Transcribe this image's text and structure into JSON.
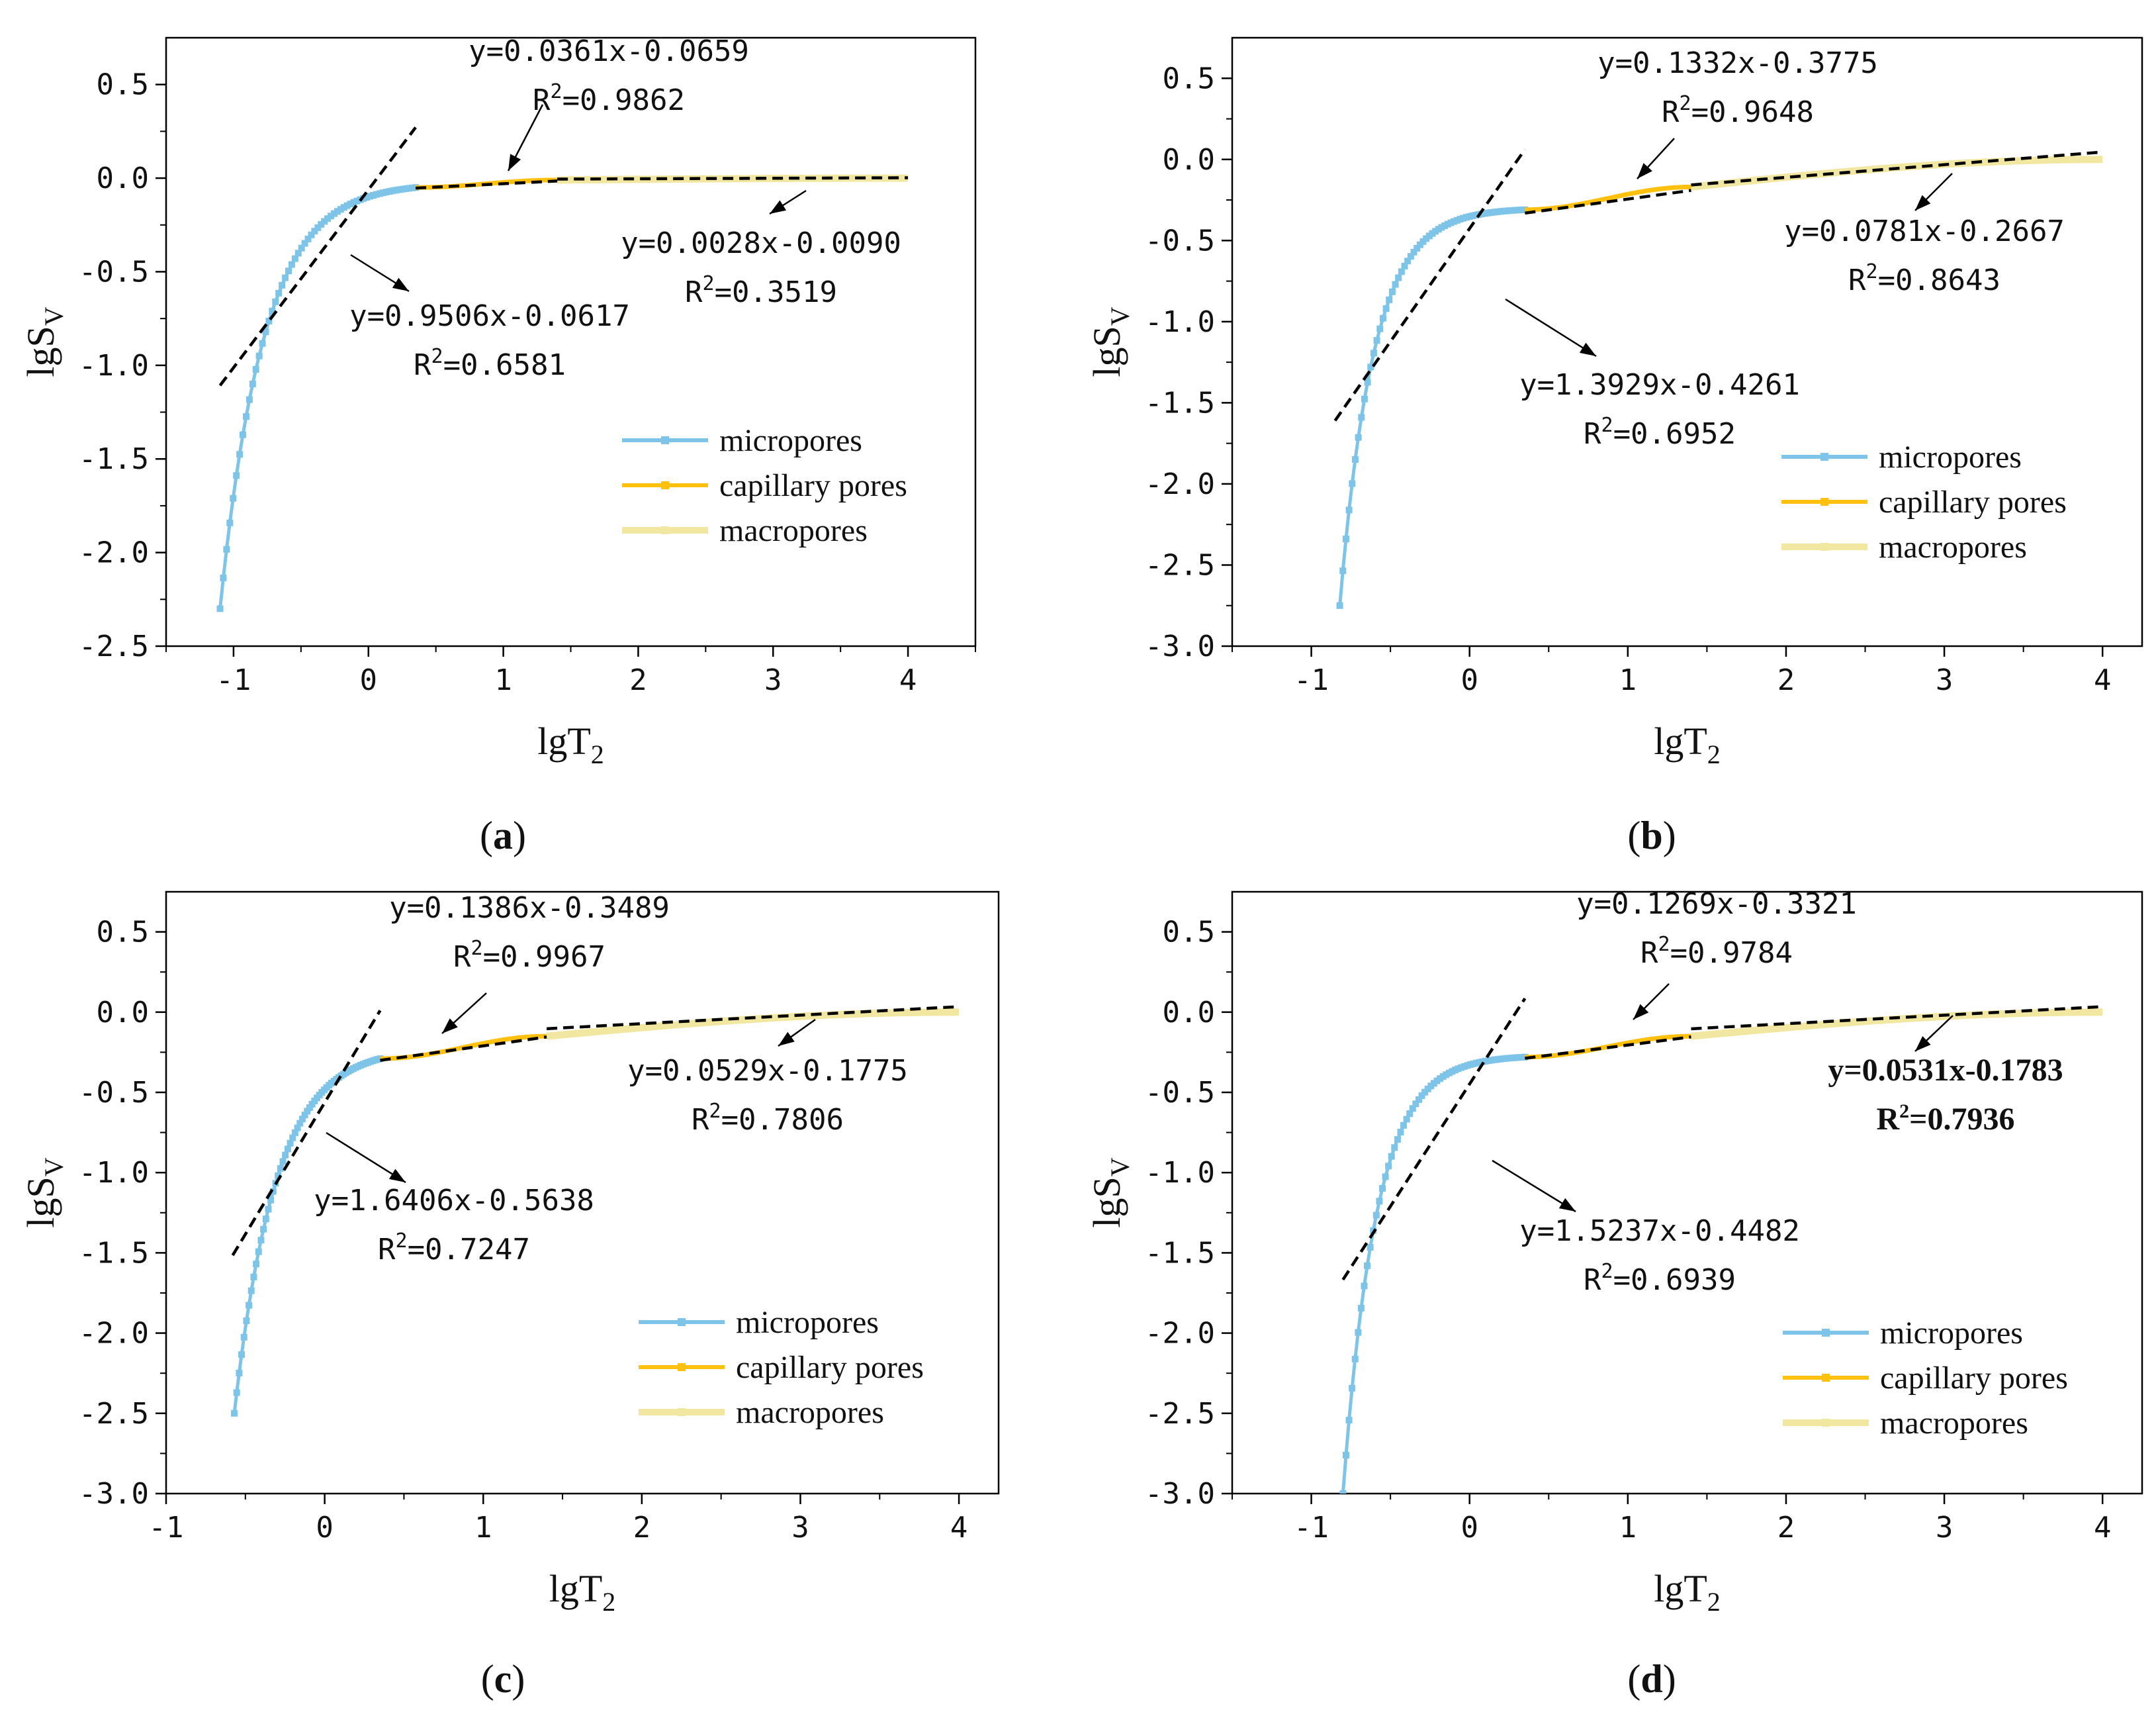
{
  "chart_data": [
    {
      "type": "line",
      "panel_label": "a",
      "xlabel": "lgT2",
      "ylabel": "lgSV",
      "xlim": [
        -1.5,
        4.5
      ],
      "ylim": [
        -2.5,
        0.75
      ],
      "xticks": [
        -1,
        0,
        1,
        2,
        3,
        4
      ],
      "yticks": [
        -2.5,
        -2.0,
        -1.5,
        -1.0,
        -0.5,
        0.0,
        0.5
      ],
      "ytick_labels": [
        "-2.5",
        "-2.0",
        "-1.5",
        "-1.0",
        "-0.5",
        "0.0",
        "0.5"
      ],
      "legend_position": "right",
      "series": [
        {
          "name": "micropores",
          "color": "#7ec4e8",
          "x_start": -1.1,
          "x_end": 0.35,
          "y_start": -2.3,
          "y_end": -0.05,
          "k": 4.5
        },
        {
          "name": "capillary pores",
          "color": "#ffc10e",
          "x_start": 0.35,
          "x_end": 1.4,
          "y_start": -0.05,
          "y_end": -0.01
        },
        {
          "name": "macropores",
          "color": "#f1e7a0",
          "x_start": 1.4,
          "x_end": 4.0,
          "y_start": -0.01,
          "y_end": 0.0
        }
      ],
      "fits": [
        {
          "slope": 0.9506,
          "intercept": -0.0617,
          "x_range": [
            -1.1,
            0.35
          ]
        },
        {
          "slope": 0.0361,
          "intercept": -0.0659,
          "x_range": [
            0.35,
            1.4
          ]
        },
        {
          "slope": 0.0028,
          "intercept": -0.009,
          "x_range": [
            1.4,
            4.0
          ]
        }
      ],
      "annotations": [
        {
          "eq": "y=0.0361x-0.0659",
          "r2": "0.9862"
        },
        {
          "eq": "y=0.0028x-0.0090",
          "r2": "0.3519"
        },
        {
          "eq": "y=0.9506x-0.0617",
          "r2": "0.6581"
        }
      ]
    },
    {
      "type": "line",
      "panel_label": "b",
      "xlabel": "lgT2",
      "ylabel": "lgSV",
      "xlim": [
        -1.5,
        4.25
      ],
      "ylim": [
        -3.0,
        0.75
      ],
      "xticks": [
        -1,
        0,
        1,
        2,
        3,
        4
      ],
      "yticks": [
        -3.0,
        -2.5,
        -2.0,
        -1.5,
        -1.0,
        -0.5,
        0.0,
        0.5
      ],
      "ytick_labels": [
        "-3.0",
        "-2.5",
        "-2.0",
        "-1.5",
        "-1.0",
        "-0.5",
        "0.0",
        "0.5"
      ],
      "legend_position": "bottom-right",
      "series": [
        {
          "name": "micropores",
          "color": "#7ec4e8",
          "x_start": -0.82,
          "x_end": 0.35,
          "y_start": -2.75,
          "y_end": -0.31,
          "k": 5.5
        },
        {
          "name": "capillary pores",
          "color": "#ffc10e",
          "x_start": 0.35,
          "x_end": 1.4,
          "y_start": -0.31,
          "y_end": -0.17
        },
        {
          "name": "macropores",
          "color": "#f1e7a0",
          "x_start": 1.4,
          "x_end": 4.0,
          "y_start": -0.17,
          "y_end": 0.0
        }
      ],
      "fits": [
        {
          "slope": 1.3929,
          "intercept": -0.4261,
          "x_range": [
            -0.85,
            0.35
          ]
        },
        {
          "slope": 0.1332,
          "intercept": -0.3775,
          "x_range": [
            0.35,
            1.4
          ]
        },
        {
          "slope": 0.0781,
          "intercept": -0.2667,
          "x_range": [
            1.4,
            4.0
          ]
        }
      ],
      "annotations": [
        {
          "eq": "y=0.1332x-0.3775",
          "r2": "0.9648"
        },
        {
          "eq": "y=0.0781x-0.2667",
          "r2": "0.8643"
        },
        {
          "eq": "y=1.3929x-0.4261",
          "r2": "0.6952"
        }
      ]
    },
    {
      "type": "line",
      "panel_label": "c",
      "xlabel": "lgT2",
      "ylabel": "lgSV",
      "xlim": [
        -1.0,
        4.25
      ],
      "ylim": [
        -3.0,
        0.75
      ],
      "xticks": [
        -1,
        0,
        1,
        2,
        3,
        4
      ],
      "yticks": [
        -3.0,
        -2.5,
        -2.0,
        -1.5,
        -1.0,
        -0.5,
        0.0,
        0.5
      ],
      "ytick_labels": [
        "-3.0",
        "-2.5",
        "-2.0",
        "-1.5",
        "-1.0",
        "-0.5",
        "0.0",
        "0.5"
      ],
      "legend_position": "bottom-right",
      "series": [
        {
          "name": "micropores",
          "color": "#7ec4e8",
          "x_start": -0.57,
          "x_end": 0.35,
          "y_start": -2.5,
          "y_end": -0.29,
          "k": 3.5
        },
        {
          "name": "capillary pores",
          "color": "#ffc10e",
          "x_start": 0.35,
          "x_end": 1.4,
          "y_start": -0.29,
          "y_end": -0.15
        },
        {
          "name": "macropores",
          "color": "#f1e7a0",
          "x_start": 1.4,
          "x_end": 4.0,
          "y_start": -0.15,
          "y_end": 0.0
        }
      ],
      "fits": [
        {
          "slope": 1.6406,
          "intercept": -0.5638,
          "x_range": [
            -0.58,
            0.35
          ]
        },
        {
          "slope": 0.1386,
          "intercept": -0.3489,
          "x_range": [
            0.35,
            1.4
          ]
        },
        {
          "slope": 0.0529,
          "intercept": -0.1775,
          "x_range": [
            1.4,
            4.0
          ]
        }
      ],
      "annotations": [
        {
          "eq": "y=0.1386x-0.3489",
          "r2": "0.9967"
        },
        {
          "eq": "y=0.0529x-0.1775",
          "r2": "0.7806"
        },
        {
          "eq": "y=1.6406x-0.5638",
          "r2": "0.7247"
        }
      ]
    },
    {
      "type": "line",
      "panel_label": "d",
      "xlabel": "lgT2",
      "ylabel": "lgSV",
      "xlim": [
        -1.5,
        4.25
      ],
      "ylim": [
        -3.0,
        0.75
      ],
      "xticks": [
        -1,
        0,
        1,
        2,
        3,
        4
      ],
      "yticks": [
        -3.0,
        -2.5,
        -2.0,
        -1.5,
        -1.0,
        -0.5,
        0.0,
        0.5
      ],
      "ytick_labels": [
        "-3.0",
        "-2.5",
        "-2.0",
        "-1.5",
        "-1.0",
        "-0.5",
        "0.0",
        "0.5"
      ],
      "legend_position": "bottom-right",
      "series": [
        {
          "name": "micropores",
          "color": "#7ec4e8",
          "x_start": -0.8,
          "x_end": 0.35,
          "y_start": -3.0,
          "y_end": -0.28,
          "k": 5.5
        },
        {
          "name": "capillary pores",
          "color": "#ffc10e",
          "x_start": 0.35,
          "x_end": 1.4,
          "y_start": -0.28,
          "y_end": -0.15
        },
        {
          "name": "macropores",
          "color": "#f1e7a0",
          "x_start": 1.4,
          "x_end": 4.0,
          "y_start": -0.15,
          "y_end": 0.0
        }
      ],
      "fits": [
        {
          "slope": 1.5237,
          "intercept": -0.4482,
          "x_range": [
            -0.8,
            0.35
          ]
        },
        {
          "slope": 0.1269,
          "intercept": -0.3321,
          "x_range": [
            0.35,
            1.4
          ]
        },
        {
          "slope": 0.0531,
          "intercept": -0.1783,
          "x_range": [
            1.4,
            4.0
          ]
        }
      ],
      "annotations": [
        {
          "eq": "y=0.1269x-0.3321",
          "r2": "0.9784"
        },
        {
          "eq": "y=0.0531x-0.1783",
          "r2": "0.7936"
        },
        {
          "eq": "y=1.5237x-0.4482",
          "r2": "0.6939"
        }
      ]
    }
  ]
}
